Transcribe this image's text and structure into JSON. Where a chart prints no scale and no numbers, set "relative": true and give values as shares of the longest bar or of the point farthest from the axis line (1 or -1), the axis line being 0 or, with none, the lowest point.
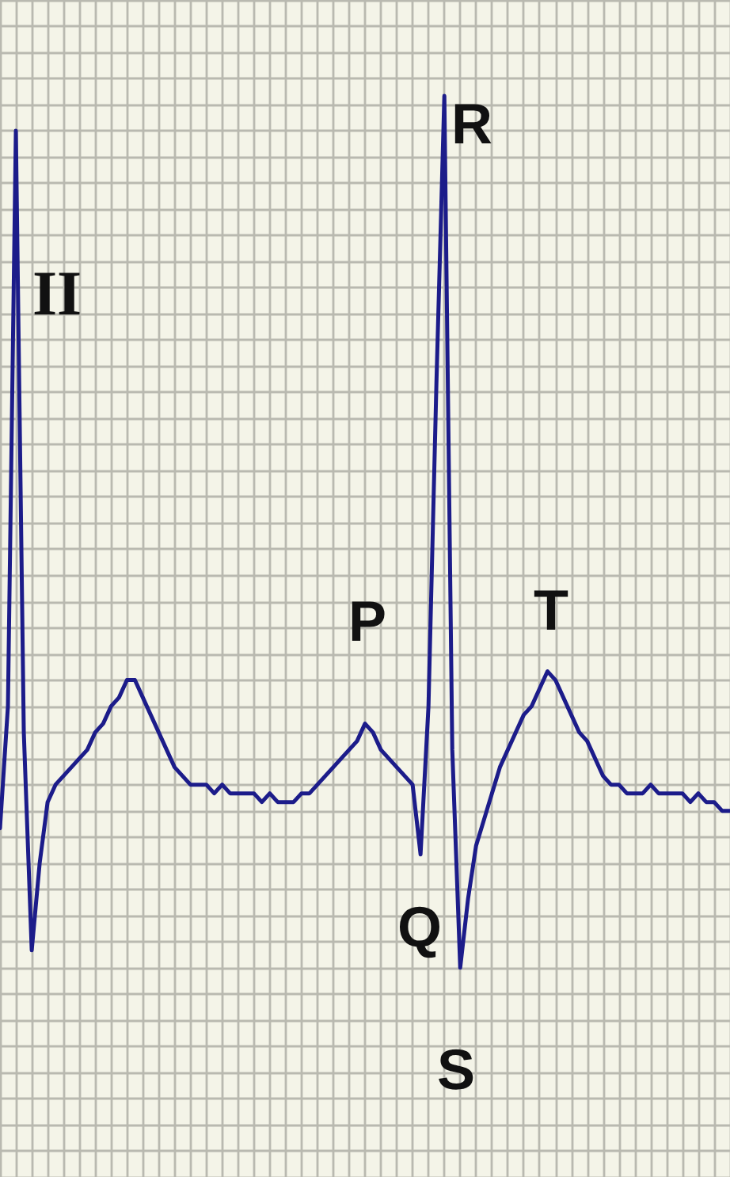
{
  "chart_data": {
    "type": "line",
    "relative": true,
    "grid": true,
    "marker": "none",
    "line_style": "solid",
    "categories": [
      null,
      null,
      null,
      null,
      null,
      null,
      null,
      null,
      null,
      null,
      null,
      null,
      null,
      null,
      null,
      null,
      null,
      null,
      null,
      null,
      null,
      null,
      null,
      null,
      null,
      null,
      null,
      null,
      null,
      null,
      null,
      null,
      null,
      null,
      null,
      null,
      null,
      null,
      null,
      null,
      null,
      null,
      null,
      null,
      null,
      null,
      null,
      null,
      null,
      null,
      null,
      null,
      null,
      null,
      null,
      null,
      null,
      null,
      null,
      null,
      null,
      null,
      null,
      null,
      null,
      null,
      null,
      null,
      null,
      null,
      null,
      null,
      null,
      null,
      null,
      null,
      null,
      null,
      null,
      null,
      null,
      null,
      null,
      null,
      null,
      null,
      null,
      null,
      null,
      null,
      null,
      null,
      null
    ],
    "series": [
      {
        "color": "#1c1c8a",
        "values": [
          0.16,
          0.3,
          0.96,
          0.27,
          0.02,
          0.12,
          0.19,
          0.21,
          0.22,
          0.23,
          0.24,
          0.25,
          0.27,
          0.28,
          0.3,
          0.31,
          0.33,
          0.33,
          0.31,
          0.29,
          0.27,
          0.25,
          0.23,
          0.22,
          0.21,
          0.21,
          0.21,
          0.2,
          0.21,
          0.2,
          0.2,
          0.2,
          0.2,
          0.19,
          0.2,
          0.19,
          0.19,
          0.19,
          0.2,
          0.2,
          0.21,
          0.22,
          0.23,
          0.24,
          0.25,
          0.26,
          0.28,
          0.27,
          0.25,
          0.24,
          0.23,
          0.22,
          0.21,
          0.13,
          0.3,
          0.67,
          1,
          0.25,
          0,
          0.08,
          0.14,
          0.17,
          0.2,
          0.23,
          0.25,
          0.27,
          0.29,
          0.3,
          0.32,
          0.34,
          0.33,
          0.31,
          0.29,
          0.27,
          0.26,
          0.24,
          0.22,
          0.21,
          0.21,
          0.2,
          0.2,
          0.2,
          0.21,
          0.2,
          0.2,
          0.2,
          0.2,
          0.19,
          0.2,
          0.19,
          0.19,
          0.18,
          0.18
        ]
      }
    ],
    "annotations": [
      "II",
      "P",
      "Q",
      "R",
      "S",
      "T"
    ]
  }
}
